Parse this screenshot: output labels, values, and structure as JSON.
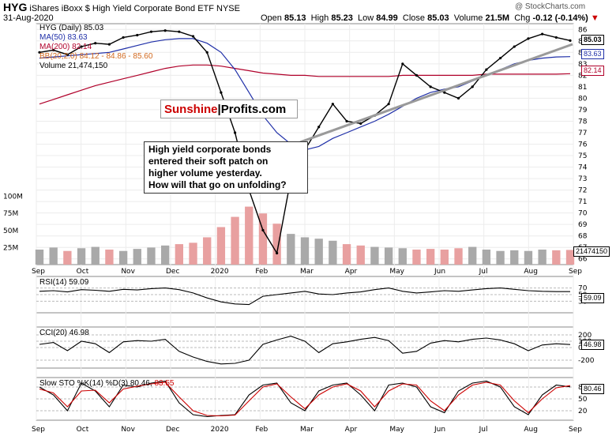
{
  "header": {
    "ticker": "HYG",
    "name": "iShares iBoxx $ High Yield Corporate Bond ETF",
    "exchange": "NYSE",
    "date": "31-Aug-2020",
    "open_label": "Open",
    "open": "85.13",
    "high_label": "High",
    "high": "85.23",
    "low_label": "Low",
    "low": "84.99",
    "close_label": "Close",
    "close": "85.03",
    "volume_label": "Volume",
    "volume": "21.5M",
    "chg_label": "Chg",
    "chg": "-0.12 (-0.14%)",
    "copyright": "@ StockCharts.com"
  },
  "legend": {
    "price": "HYG (Daily) 85.03",
    "ma50": "MA(50) 83.63",
    "ma200": "MA(200) 82.14",
    "bb": "BB(20,2.0) 84.12 - 84.86 - 85.60",
    "vol": "Volume 21,474,150"
  },
  "annotation": {
    "logo_a": "Sunshine",
    "logo_b": "Profits.com",
    "note_lines": [
      "High yield corporate bonds",
      "entered their soft patch on",
      "higher volume yesterday.",
      "How will that go on unfolding?"
    ]
  },
  "panels": {
    "rsi_label": "RSI(14) 59.09",
    "rsi_value": "59.09",
    "cci_label": "CCI(20) 46.98",
    "cci_value": "46.98",
    "sto_label": "Slow STO %K(14) %D(3) 80.46,",
    "sto_label_d": "83.55",
    "sto_value": "80.46",
    "price_last": "85.03",
    "ma50_last": "83.63",
    "ma200_last": "82.14",
    "vol_last": "21474150"
  },
  "colors": {
    "price": "#000000",
    "ma50": "#1f2fa8",
    "ma200": "#b0002a",
    "bb": "#f0a070",
    "vol_up": "#a9a9a9",
    "vol_down": "#e8a0a0",
    "trendline": "#9a9a9a",
    "rsi_fill_high": "#3a7a3a",
    "cci_fill_low": "#7a3a3a",
    "sto_d": "#cc0000"
  },
  "chart_data": [
    {
      "type": "line",
      "title": "HYG (Daily)",
      "x_labels": [
        "Sep",
        "Oct",
        "Nov",
        "Dec",
        "2020",
        "Feb",
        "Mar",
        "Apr",
        "May",
        "Jun",
        "Jul",
        "Aug",
        "Sep"
      ],
      "y_ticks": [
        66,
        67,
        68,
        69,
        70,
        71,
        72,
        73,
        74,
        75,
        76,
        77,
        78,
        79,
        80,
        81,
        82,
        83,
        84,
        85,
        86
      ],
      "ylim": [
        65.5,
        86.5
      ],
      "series": [
        {
          "name": "HYG (Daily)",
          "values": [
            84.0,
            84.2,
            83.8,
            84.5,
            84.8,
            84.7,
            85.3,
            85.5,
            85.8,
            85.9,
            85.8,
            85.4,
            84.0,
            80.5,
            77.0,
            72.0,
            68.5,
            66.5,
            73.0,
            75.5,
            77.5,
            79.5,
            78.0,
            77.8,
            78.5,
            79.5,
            83.0,
            82.0,
            81.0,
            80.5,
            80.0,
            81.0,
            82.5,
            83.5,
            84.5,
            85.2,
            85.6,
            85.3,
            85.03
          ]
        },
        {
          "name": "MA(50)",
          "values": [
            83.5,
            83.6,
            83.7,
            83.8,
            83.9,
            84.0,
            84.3,
            84.6,
            84.9,
            85.1,
            85.2,
            85.2,
            84.8,
            84.0,
            82.5,
            80.5,
            78.5,
            77.0,
            76.0,
            75.5,
            75.8,
            76.5,
            77.0,
            77.5,
            78.0,
            78.6,
            79.3,
            80.0,
            80.5,
            80.8,
            81.0,
            81.5,
            82.0,
            82.5,
            83.0,
            83.3,
            83.5,
            83.6,
            83.63
          ]
        },
        {
          "name": "MA(200)",
          "values": [
            79.5,
            79.9,
            80.3,
            80.7,
            81.1,
            81.4,
            81.7,
            82.0,
            82.3,
            82.6,
            82.8,
            82.9,
            82.9,
            82.8,
            82.6,
            82.4,
            82.2,
            82.1,
            82.0,
            82.0,
            81.9,
            81.9,
            81.9,
            81.9,
            81.9,
            81.9,
            82.0,
            82.0,
            82.0,
            82.0,
            82.0,
            82.0,
            82.1,
            82.1,
            82.1,
            82.1,
            82.1,
            82.1,
            82.14
          ]
        }
      ],
      "last_values": {
        "price": 85.03,
        "ma50": 83.63,
        "ma200": 82.14,
        "bb_lower": 84.12,
        "bb_mid": 84.86,
        "bb_upper": 85.6
      }
    },
    {
      "type": "bar",
      "title": "Volume",
      "y_ticks_label": [
        "25M",
        "50M",
        "75M",
        "100M"
      ],
      "y_ticks": [
        25,
        50,
        75,
        100
      ],
      "ylim": [
        0,
        110
      ],
      "values": [
        22,
        25,
        20,
        24,
        26,
        22,
        20,
        23,
        25,
        28,
        30,
        32,
        40,
        55,
        70,
        85,
        75,
        60,
        45,
        40,
        38,
        35,
        30,
        28,
        26,
        25,
        24,
        22,
        23,
        22,
        24,
        26,
        22,
        20,
        21,
        20,
        22,
        21,
        21.5
      ]
    },
    {
      "type": "line",
      "title": "RSI(14)",
      "y_ticks": [
        30,
        50,
        70
      ],
      "ylim": [
        0,
        100
      ],
      "values": [
        60,
        62,
        58,
        65,
        63,
        60,
        66,
        64,
        68,
        70,
        65,
        55,
        40,
        28,
        22,
        20,
        45,
        50,
        55,
        60,
        52,
        50,
        55,
        58,
        65,
        70,
        60,
        55,
        58,
        62,
        60,
        64,
        68,
        70,
        66,
        62,
        60,
        59,
        59.09
      ]
    },
    {
      "type": "line",
      "title": "CCI(20)",
      "y_ticks": [
        -200,
        0,
        100,
        200
      ],
      "ylim": [
        -300,
        300
      ],
      "values": [
        50,
        80,
        -50,
        100,
        60,
        -80,
        90,
        110,
        100,
        130,
        -60,
        -150,
        -220,
        -260,
        -250,
        -200,
        50,
        120,
        180,
        100,
        -80,
        60,
        90,
        130,
        160,
        110,
        -90,
        -60,
        70,
        110,
        90,
        130,
        150,
        120,
        60,
        -50,
        40,
        60,
        46.98
      ]
    },
    {
      "type": "line",
      "title": "Slow STO %K(14) %D(3)",
      "y_ticks": [
        20,
        50,
        80
      ],
      "ylim": [
        0,
        100
      ],
      "series": [
        {
          "name": "%K(14)",
          "values": [
            80,
            60,
            20,
            90,
            70,
            30,
            85,
            80,
            90,
            95,
            40,
            10,
            5,
            8,
            10,
            60,
            85,
            90,
            40,
            20,
            70,
            85,
            90,
            60,
            20,
            85,
            90,
            80,
            30,
            15,
            70,
            90,
            95,
            80,
            30,
            10,
            60,
            85,
            80.46
          ]
        },
        {
          "name": "%D(3)",
          "values": [
            75,
            65,
            30,
            70,
            72,
            40,
            75,
            82,
            88,
            92,
            55,
            20,
            8,
            7,
            9,
            45,
            80,
            88,
            55,
            25,
            60,
            80,
            88,
            70,
            30,
            70,
            88,
            85,
            45,
            20,
            60,
            85,
            92,
            85,
            45,
            15,
            50,
            78,
            83.55
          ]
        }
      ]
    }
  ]
}
